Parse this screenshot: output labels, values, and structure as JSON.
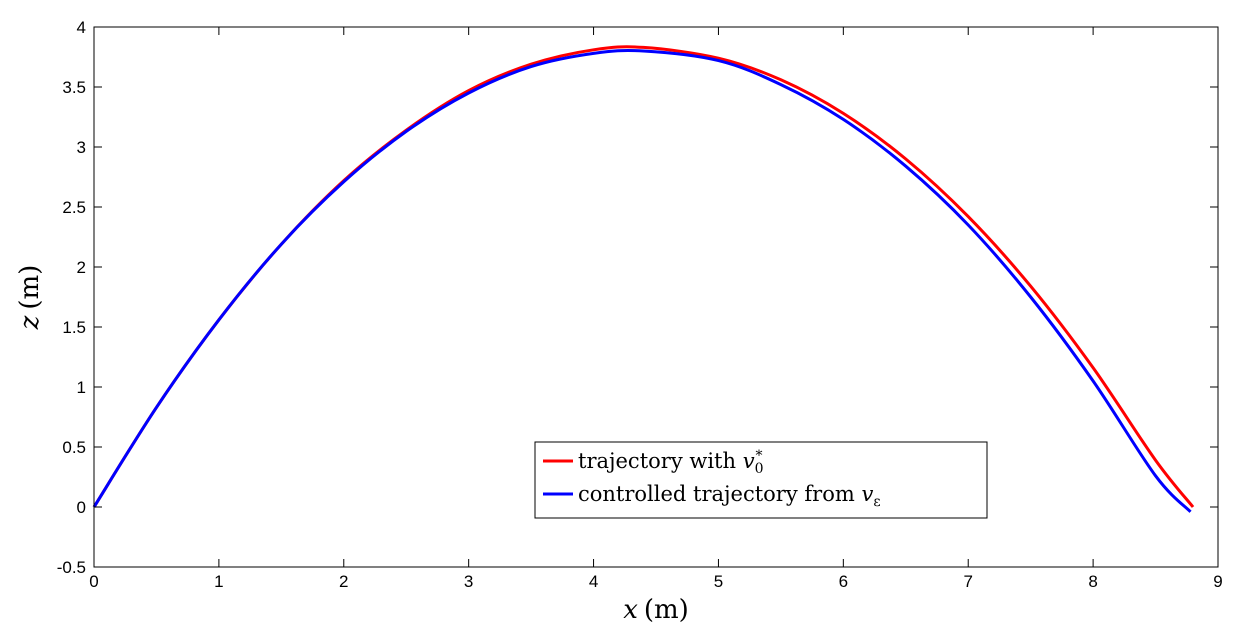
{
  "chart_data": {
    "type": "line",
    "title": "",
    "xlabel": {
      "var": "x",
      "unit": "(m)"
    },
    "ylabel": {
      "var": "z",
      "unit": "(m)"
    },
    "xlim": [
      0,
      9
    ],
    "ylim": [
      -0.5,
      4
    ],
    "xticks": [
      0,
      1,
      2,
      3,
      4,
      5,
      6,
      7,
      8,
      9
    ],
    "xtick_labels": [
      "0",
      "1",
      "2",
      "3",
      "4",
      "5",
      "6",
      "7",
      "8",
      "9"
    ],
    "yticks": [
      -0.5,
      0,
      0.5,
      1,
      1.5,
      2,
      2.5,
      3,
      3.5,
      4
    ],
    "ytick_labels": [
      "-0.5",
      "0",
      "0.5",
      "1",
      "1.5",
      "2",
      "2.5",
      "3",
      "3.5",
      "4"
    ],
    "grid": false,
    "legend_position": "bottom-center",
    "series": [
      {
        "name": "trajectory with v0*",
        "legend_text": "trajectory with ",
        "legend_var": "v",
        "legend_sub": "0",
        "legend_sup": "*",
        "color": "#ff0000",
        "x": [
          0,
          0.5,
          1,
          1.5,
          2,
          2.5,
          3,
          3.5,
          4,
          4.4,
          5,
          5.5,
          6,
          6.5,
          7,
          7.5,
          8,
          8.5,
          8.8
        ],
        "y": [
          0,
          0.83,
          1.56,
          2.19,
          2.72,
          3.14,
          3.47,
          3.69,
          3.81,
          3.83,
          3.74,
          3.56,
          3.28,
          2.9,
          2.42,
          1.84,
          1.16,
          0.39,
          0.0
        ]
      },
      {
        "name": "controlled trajectory from v_epsilon",
        "legend_text": "controlled trajectory from ",
        "legend_var": "v",
        "legend_sub": "ε",
        "color": "#0000ff",
        "x": [
          0,
          0.5,
          1,
          1.5,
          2,
          2.5,
          3,
          3.5,
          4,
          4.4,
          5,
          5.5,
          6,
          6.5,
          7,
          7.5,
          8,
          8.5,
          8.78
        ],
        "y": [
          0,
          0.83,
          1.56,
          2.19,
          2.71,
          3.13,
          3.45,
          3.67,
          3.78,
          3.8,
          3.72,
          3.52,
          3.23,
          2.84,
          2.35,
          1.75,
          1.05,
          0.26,
          -0.04
        ]
      }
    ]
  }
}
